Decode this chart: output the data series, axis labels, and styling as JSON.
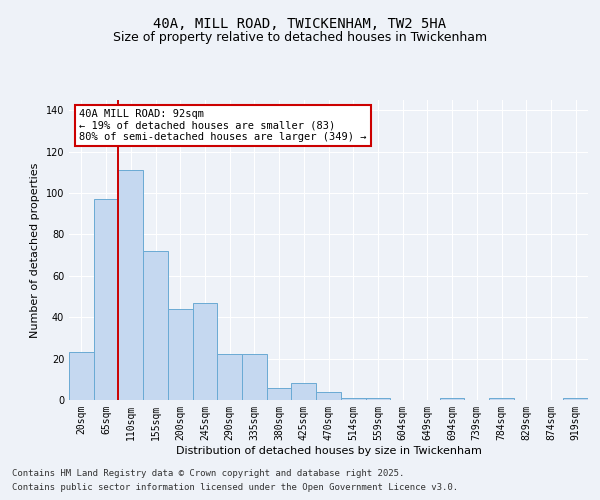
{
  "title_line1": "40A, MILL ROAD, TWICKENHAM, TW2 5HA",
  "title_line2": "Size of property relative to detached houses in Twickenham",
  "xlabel": "Distribution of detached houses by size in Twickenham",
  "ylabel": "Number of detached properties",
  "categories": [
    "20sqm",
    "65sqm",
    "110sqm",
    "155sqm",
    "200sqm",
    "245sqm",
    "290sqm",
    "335sqm",
    "380sqm",
    "425sqm",
    "470sqm",
    "514sqm",
    "559sqm",
    "604sqm",
    "649sqm",
    "694sqm",
    "739sqm",
    "784sqm",
    "829sqm",
    "874sqm",
    "919sqm"
  ],
  "values": [
    23,
    97,
    111,
    72,
    44,
    47,
    22,
    22,
    6,
    8,
    4,
    1,
    1,
    0,
    0,
    1,
    0,
    1,
    0,
    0,
    1
  ],
  "bar_color": "#c5d8f0",
  "bar_edge_color": "#6aaad4",
  "red_line_x": 1.5,
  "annotation_text": "40A MILL ROAD: 92sqm\n← 19% of detached houses are smaller (83)\n80% of semi-detached houses are larger (349) →",
  "annotation_box_color": "#ffffff",
  "annotation_box_edge": "#cc0000",
  "ylim": [
    0,
    145
  ],
  "yticks": [
    0,
    20,
    40,
    60,
    80,
    100,
    120,
    140
  ],
  "footer_line1": "Contains HM Land Registry data © Crown copyright and database right 2025.",
  "footer_line2": "Contains public sector information licensed under the Open Government Licence v3.0.",
  "background_color": "#eef2f8",
  "plot_background": "#eef2f8",
  "grid_color": "#ffffff",
  "title_fontsize": 10,
  "subtitle_fontsize": 9,
  "axis_label_fontsize": 8,
  "tick_fontsize": 7,
  "annotation_fontsize": 7.5,
  "footer_fontsize": 6.5
}
